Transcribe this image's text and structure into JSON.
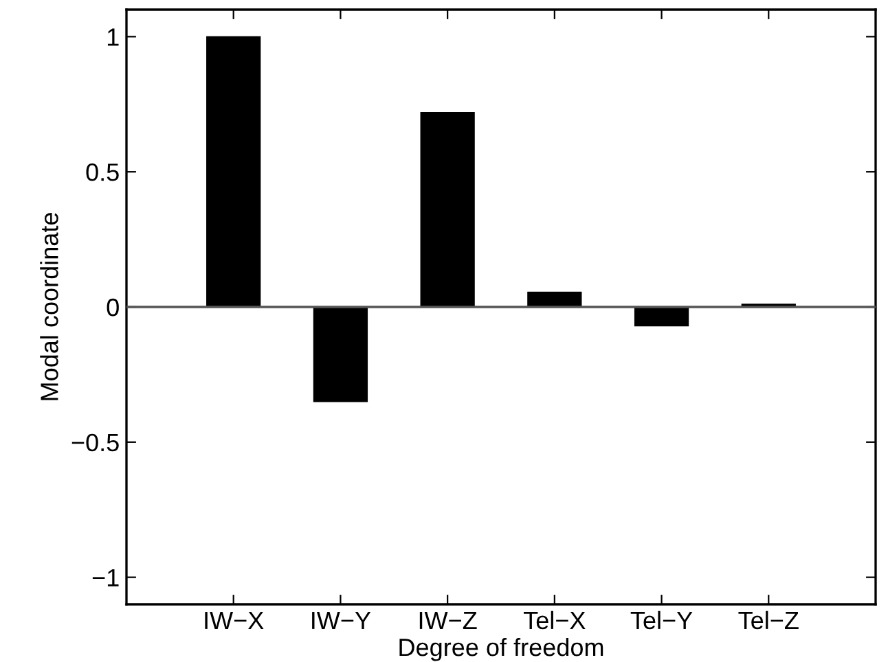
{
  "chart_data": {
    "type": "bar",
    "xlabel": "Degree of freedom",
    "ylabel": "Modal coordinate",
    "categories": [
      "IW−X",
      "IW−Y",
      "IW−Z",
      "Tel−X",
      "Tel−Y",
      "Tel−Z"
    ],
    "values": [
      1.0,
      -0.35,
      0.72,
      0.055,
      -0.07,
      0.01
    ],
    "color": "#000000",
    "ylim": [
      -1.1,
      1.1
    ],
    "yticks": [
      {
        "value": -1,
        "label": "−1"
      },
      {
        "value": -0.5,
        "label": "−0.5"
      },
      0,
      0.5,
      1
    ],
    "ref_lines": [
      {
        "axis": "y",
        "value": 0,
        "color": "#555555"
      }
    ],
    "grid": false
  }
}
